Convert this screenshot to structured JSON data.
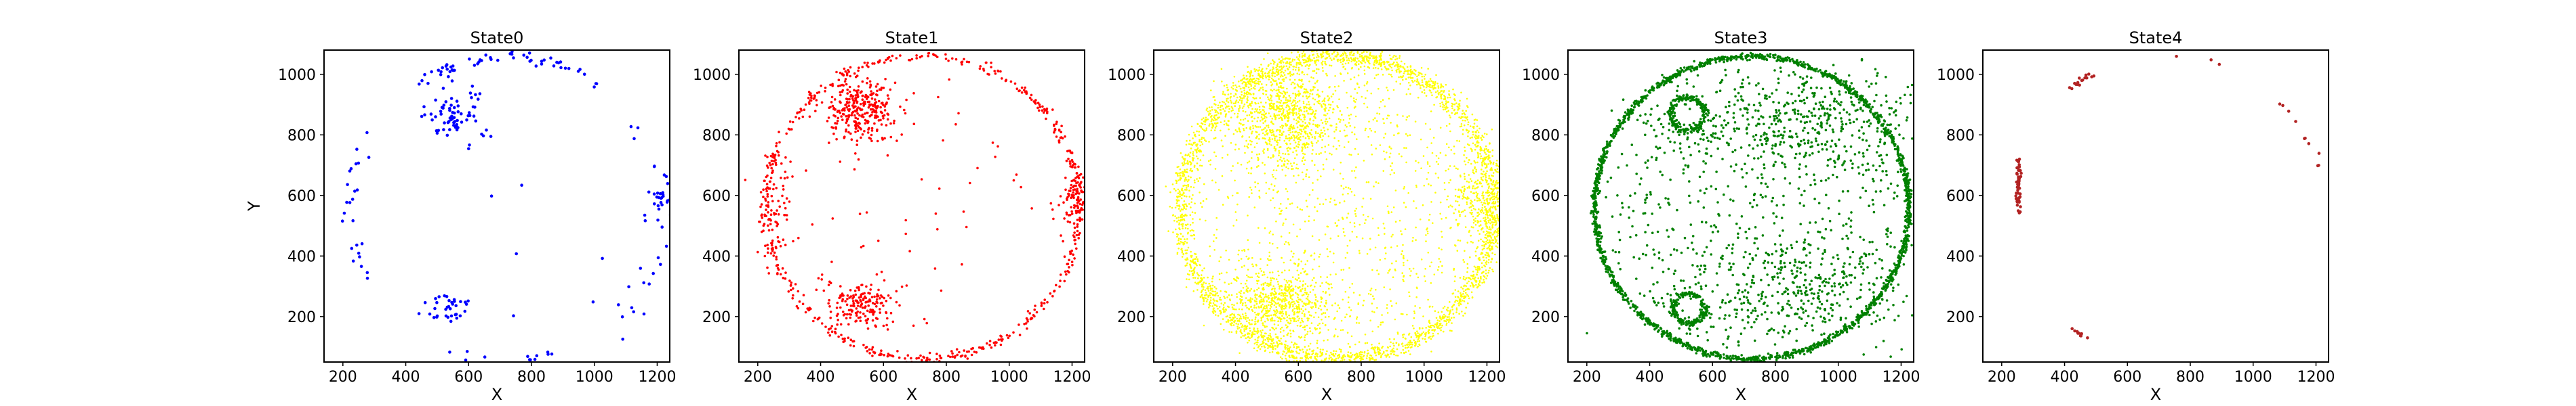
{
  "figure": {
    "background": "#ffffff"
  },
  "chart_data": [
    {
      "type": "scatter",
      "title": "State0",
      "xlabel": "X",
      "ylabel": "Y",
      "xlim": [
        140,
        1240
      ],
      "ylim": [
        50,
        1080
      ],
      "xticks": [
        200,
        400,
        600,
        800,
        1000,
        1200
      ],
      "yticks": [
        200,
        400,
        600,
        800,
        1000
      ],
      "color": "#0000ff",
      "density": "sparse",
      "clusters": [
        {
          "name": "top-arc",
          "kind": "arc",
          "cx": 725,
          "cy": 560,
          "r": 500,
          "start": 55,
          "end": 125,
          "n": 55,
          "jitter": 10
        },
        {
          "name": "upper-left-blob",
          "kind": "blob",
          "cx": 560,
          "cy": 860,
          "sx": 45,
          "sy": 50,
          "n": 70
        },
        {
          "name": "left-arc",
          "kind": "arc",
          "cx": 725,
          "cy": 560,
          "r": 500,
          "start": 150,
          "end": 210,
          "n": 25,
          "jitter": 12
        },
        {
          "name": "lower-left-blob",
          "kind": "blob",
          "cx": 540,
          "cy": 235,
          "sx": 45,
          "sy": 30,
          "n": 35
        },
        {
          "name": "bottom-arc",
          "kind": "arc",
          "cx": 725,
          "cy": 560,
          "r": 500,
          "start": 245,
          "end": 290,
          "n": 12,
          "jitter": 8
        },
        {
          "name": "right-arc",
          "kind": "arc",
          "cx": 725,
          "cy": 560,
          "r": 500,
          "start": -50,
          "end": 40,
          "n": 35,
          "jitter": 25
        },
        {
          "name": "right-edge-blob",
          "kind": "blob",
          "cx": 1210,
          "cy": 590,
          "sx": 15,
          "sy": 15,
          "n": 15
        },
        {
          "name": "interior",
          "kind": "uniform-disk",
          "cx": 725,
          "cy": 560,
          "r": 440,
          "n": 6
        }
      ]
    },
    {
      "type": "scatter",
      "title": "State1",
      "xlabel": "X",
      "ylabel": "",
      "xlim": [
        140,
        1240
      ],
      "ylim": [
        50,
        1080
      ],
      "xticks": [
        200,
        400,
        600,
        800,
        1000,
        1200
      ],
      "yticks": [
        200,
        400,
        600,
        800,
        1000
      ],
      "color": "#ff0000",
      "density": "medium",
      "clusters": [
        {
          "name": "circle-ring",
          "kind": "ring",
          "cx": 725,
          "cy": 560,
          "r": 500,
          "n": 500,
          "jitter": 8
        },
        {
          "name": "upper-left-blob",
          "kind": "blob",
          "cx": 530,
          "cy": 880,
          "sx": 60,
          "sy": 50,
          "n": 300
        },
        {
          "name": "lower-left-blob",
          "kind": "blob",
          "cx": 520,
          "cy": 240,
          "sx": 55,
          "sy": 40,
          "n": 170
        },
        {
          "name": "left-cluster",
          "kind": "blob",
          "cx": 260,
          "cy": 560,
          "sx": 30,
          "sy": 100,
          "n": 80
        },
        {
          "name": "right-blob",
          "kind": "blob",
          "cx": 1210,
          "cy": 590,
          "sx": 20,
          "sy": 60,
          "n": 100
        },
        {
          "name": "interior",
          "kind": "uniform-disk",
          "cx": 725,
          "cy": 560,
          "r": 440,
          "n": 60
        }
      ]
    },
    {
      "type": "scatter",
      "title": "State2",
      "xlabel": "X",
      "ylabel": "",
      "xlim": [
        140,
        1240
      ],
      "ylim": [
        50,
        1080
      ],
      "xticks": [
        200,
        400,
        600,
        800,
        1000,
        1200
      ],
      "yticks": [
        200,
        400,
        600,
        800,
        1000
      ],
      "color": "#ffff00",
      "density": "dense",
      "clusters": [
        {
          "name": "circle-ring",
          "kind": "ring",
          "cx": 725,
          "cy": 560,
          "r": 500,
          "n": 2600,
          "jitter": 16
        },
        {
          "name": "upper-left-blob",
          "kind": "blob",
          "cx": 560,
          "cy": 860,
          "sx": 90,
          "sy": 80,
          "n": 900
        },
        {
          "name": "lower-left-blob",
          "kind": "blob",
          "cx": 540,
          "cy": 240,
          "sx": 80,
          "sy": 60,
          "n": 650
        },
        {
          "name": "interior-trails",
          "kind": "uniform-disk",
          "cx": 725,
          "cy": 560,
          "r": 470,
          "n": 900
        },
        {
          "name": "right-blob",
          "kind": "blob",
          "cx": 1180,
          "cy": 570,
          "sx": 45,
          "sy": 80,
          "n": 250
        }
      ]
    },
    {
      "type": "scatter",
      "title": "State3",
      "xlabel": "X",
      "ylabel": "",
      "xlim": [
        140,
        1240
      ],
      "ylim": [
        50,
        1080
      ],
      "xticks": [
        200,
        400,
        600,
        800,
        1000,
        1200
      ],
      "yticks": [
        200,
        400,
        600,
        800,
        1000
      ],
      "color": "#008000",
      "density": "medium",
      "clusters": [
        {
          "name": "circle-ring",
          "kind": "ring",
          "cx": 725,
          "cy": 560,
          "r": 500,
          "n": 1800,
          "jitter": 5
        },
        {
          "name": "upper-loop",
          "kind": "ring",
          "cx": 520,
          "cy": 870,
          "r": 55,
          "n": 220,
          "jitter": 6
        },
        {
          "name": "lower-loop",
          "kind": "ring",
          "cx": 525,
          "cy": 225,
          "r": 50,
          "n": 200,
          "jitter": 6
        },
        {
          "name": "upper-band",
          "kind": "blob",
          "cx": 900,
          "cy": 840,
          "sx": 220,
          "sy": 90,
          "n": 450
        },
        {
          "name": "lower-band",
          "kind": "blob",
          "cx": 880,
          "cy": 300,
          "sx": 220,
          "sy": 90,
          "n": 350
        },
        {
          "name": "interior",
          "kind": "uniform-disk",
          "cx": 725,
          "cy": 560,
          "r": 470,
          "n": 600
        }
      ]
    },
    {
      "type": "scatter",
      "title": "State4",
      "xlabel": "X",
      "ylabel": "",
      "xlim": [
        140,
        1240
      ],
      "ylim": [
        50,
        1080
      ],
      "xticks": [
        200,
        400,
        600,
        800,
        1000,
        1200
      ],
      "yticks": [
        200,
        400,
        600,
        800,
        1000
      ],
      "color": "#b22222",
      "density": "very-sparse",
      "clusters": [
        {
          "name": "left-vertical",
          "kind": "blob",
          "cx": 253,
          "cy": 640,
          "sx": 3,
          "sy": 45,
          "n": 60
        },
        {
          "name": "upper-left-arc",
          "kind": "arc",
          "cx": 725,
          "cy": 560,
          "r": 500,
          "start": 118,
          "end": 128,
          "n": 16,
          "jitter": 5
        },
        {
          "name": "upper-dots",
          "kind": "arc",
          "cx": 725,
          "cy": 560,
          "r": 500,
          "start": 70,
          "end": 100,
          "n": 3,
          "jitter": 4
        },
        {
          "name": "right-arc",
          "kind": "arc",
          "cx": 725,
          "cy": 560,
          "r": 500,
          "start": 12,
          "end": 45,
          "n": 10,
          "jitter": 8
        },
        {
          "name": "lower-left-arc",
          "kind": "arc",
          "cx": 725,
          "cy": 560,
          "r": 500,
          "start": 232,
          "end": 242,
          "n": 10,
          "jitter": 4
        }
      ]
    }
  ]
}
